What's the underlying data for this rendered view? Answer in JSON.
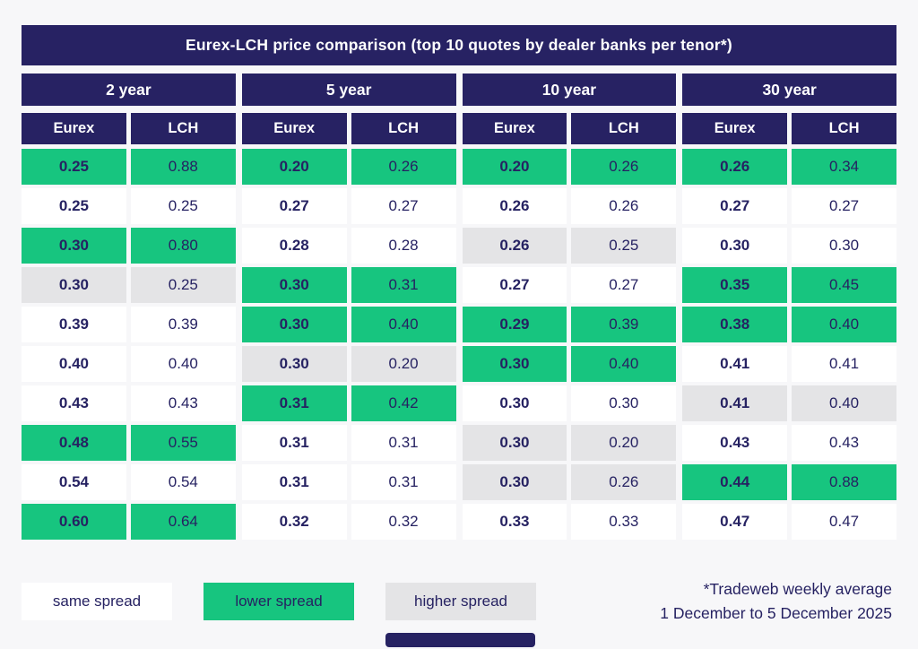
{
  "title": "Eurex-LCH price comparison (top 10 quotes by dealer banks per tenor*)",
  "chart_data": {
    "type": "table",
    "title": "Eurex-LCH price comparison (top 10 quotes by dealer banks per tenor*)",
    "column_groups": [
      "2 year",
      "5 year",
      "10 year",
      "30 year"
    ],
    "sub_columns": [
      "Eurex",
      "LCH"
    ],
    "status_meaning": {
      "same": "same spread",
      "lower": "lower spread",
      "higher": "higher spread"
    },
    "tenors": [
      {
        "label": "2 year",
        "rows": [
          {
            "eurex": "0.25",
            "lch": "0.88",
            "status": "lower"
          },
          {
            "eurex": "0.25",
            "lch": "0.25",
            "status": "same"
          },
          {
            "eurex": "0.30",
            "lch": "0.80",
            "status": "lower"
          },
          {
            "eurex": "0.30",
            "lch": "0.25",
            "status": "higher"
          },
          {
            "eurex": "0.39",
            "lch": "0.39",
            "status": "same"
          },
          {
            "eurex": "0.40",
            "lch": "0.40",
            "status": "same"
          },
          {
            "eurex": "0.43",
            "lch": "0.43",
            "status": "same"
          },
          {
            "eurex": "0.48",
            "lch": "0.55",
            "status": "lower"
          },
          {
            "eurex": "0.54",
            "lch": "0.54",
            "status": "same"
          },
          {
            "eurex": "0.60",
            "lch": "0.64",
            "status": "lower"
          }
        ]
      },
      {
        "label": "5 year",
        "rows": [
          {
            "eurex": "0.20",
            "lch": "0.26",
            "status": "lower"
          },
          {
            "eurex": "0.27",
            "lch": "0.27",
            "status": "same"
          },
          {
            "eurex": "0.28",
            "lch": "0.28",
            "status": "same"
          },
          {
            "eurex": "0.30",
            "lch": "0.31",
            "status": "lower"
          },
          {
            "eurex": "0.30",
            "lch": "0.40",
            "status": "lower"
          },
          {
            "eurex": "0.30",
            "lch": "0.20",
            "status": "higher"
          },
          {
            "eurex": "0.31",
            "lch": "0.42",
            "status": "lower"
          },
          {
            "eurex": "0.31",
            "lch": "0.31",
            "status": "same"
          },
          {
            "eurex": "0.31",
            "lch": "0.31",
            "status": "same"
          },
          {
            "eurex": "0.32",
            "lch": "0.32",
            "status": "same"
          }
        ]
      },
      {
        "label": "10 year",
        "rows": [
          {
            "eurex": "0.20",
            "lch": "0.26",
            "status": "lower"
          },
          {
            "eurex": "0.26",
            "lch": "0.26",
            "status": "same"
          },
          {
            "eurex": "0.26",
            "lch": "0.25",
            "status": "higher"
          },
          {
            "eurex": "0.27",
            "lch": "0.27",
            "status": "same"
          },
          {
            "eurex": "0.29",
            "lch": "0.39",
            "status": "lower"
          },
          {
            "eurex": "0.30",
            "lch": "0.40",
            "status": "lower"
          },
          {
            "eurex": "0.30",
            "lch": "0.30",
            "status": "same"
          },
          {
            "eurex": "0.30",
            "lch": "0.20",
            "status": "higher"
          },
          {
            "eurex": "0.30",
            "lch": "0.26",
            "status": "higher"
          },
          {
            "eurex": "0.33",
            "lch": "0.33",
            "status": "same"
          }
        ]
      },
      {
        "label": "30 year",
        "rows": [
          {
            "eurex": "0.26",
            "lch": "0.34",
            "status": "lower"
          },
          {
            "eurex": "0.27",
            "lch": "0.27",
            "status": "same"
          },
          {
            "eurex": "0.30",
            "lch": "0.30",
            "status": "same"
          },
          {
            "eurex": "0.35",
            "lch": "0.45",
            "status": "lower"
          },
          {
            "eurex": "0.38",
            "lch": "0.40",
            "status": "lower"
          },
          {
            "eurex": "0.41",
            "lch": "0.41",
            "status": "same"
          },
          {
            "eurex": "0.41",
            "lch": "0.40",
            "status": "higher"
          },
          {
            "eurex": "0.43",
            "lch": "0.43",
            "status": "same"
          },
          {
            "eurex": "0.44",
            "lch": "0.88",
            "status": "lower"
          },
          {
            "eurex": "0.47",
            "lch": "0.47",
            "status": "same"
          }
        ]
      }
    ]
  },
  "legend": [
    {
      "label": "same spread",
      "status": "same"
    },
    {
      "label": "lower spread",
      "status": "lower"
    },
    {
      "label": "higher spread",
      "status": "higher"
    }
  ],
  "footnote": {
    "line1": "*Tradeweb weekly average",
    "line2": "1 December to 5 December 2025"
  },
  "colors": {
    "navy": "#272263",
    "green": "#17c57f",
    "gray": "#e4e4e6",
    "white": "#ffffff",
    "text": "#262262",
    "background": "#f7f7f9"
  }
}
